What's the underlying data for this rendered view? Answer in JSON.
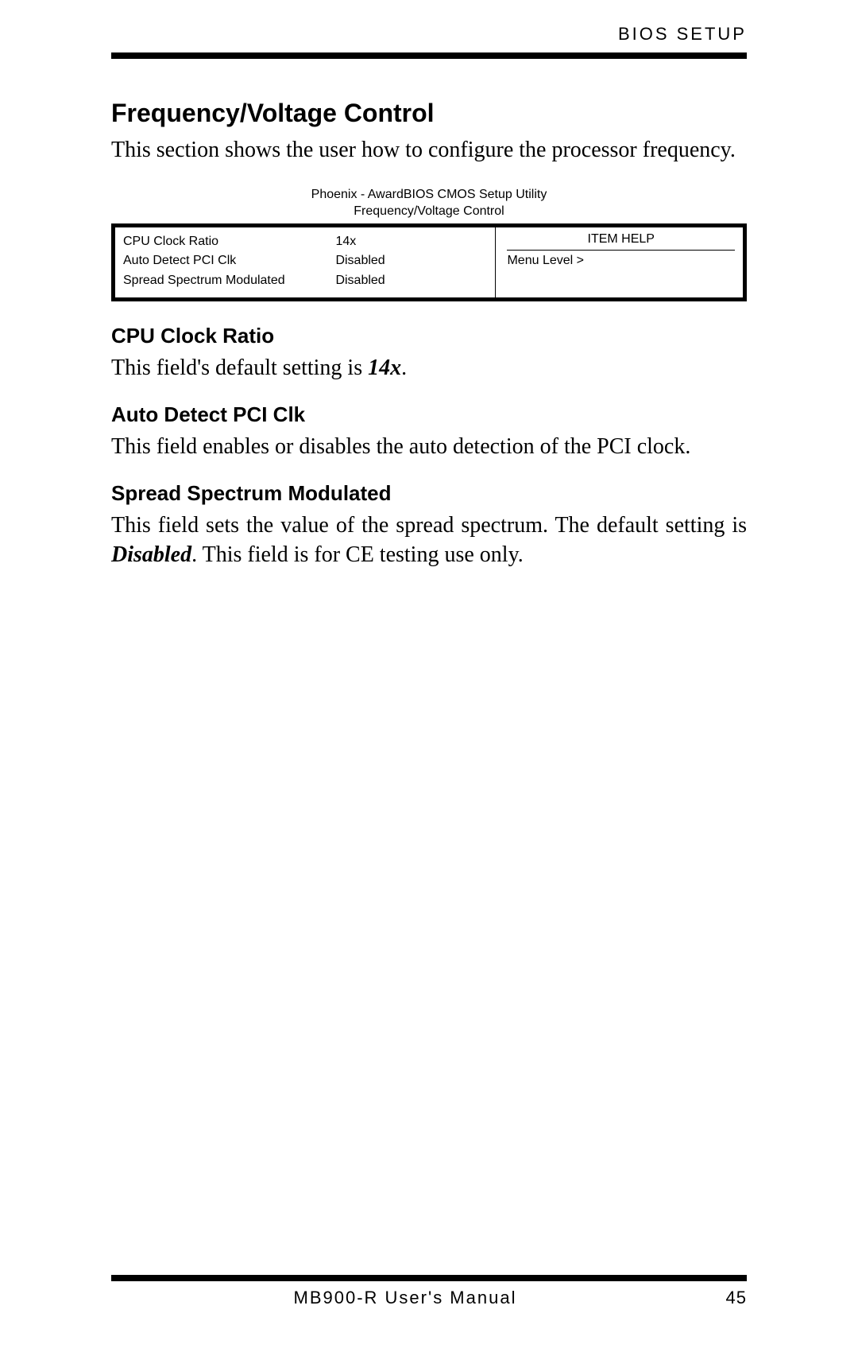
{
  "header": {
    "label": "BIOS SETUP"
  },
  "section": {
    "title": "Frequency/Voltage Control",
    "intro": "This section shows the user how to configure the processor frequency."
  },
  "bios": {
    "caption_line1": "Phoenix - AwardBIOS CMOS Setup Utility",
    "caption_line2": "Frequency/Voltage Control",
    "rows": [
      {
        "label": "CPU Clock Ratio",
        "value": "14x"
      },
      {
        "label": "Auto Detect PCI Clk",
        "value": "Disabled"
      },
      {
        "label": "Spread Spectrum Modulated",
        "value": "Disabled"
      }
    ],
    "help_header": "ITEM HELP",
    "menu_level": "Menu Level  >"
  },
  "subs": {
    "s1": {
      "heading": "CPU Clock Ratio",
      "pre": "This field's default setting is ",
      "em": "14x",
      "post": "."
    },
    "s2": {
      "heading": "Auto Detect PCI Clk",
      "text": "This field enables or disables the auto detection of the PCI clock."
    },
    "s3": {
      "heading": "Spread Spectrum Modulated",
      "pre": "This field sets the value of the spread spectrum. The default setting is ",
      "em": "Disabled",
      "post": ". This field is for CE testing use only."
    }
  },
  "footer": {
    "manual": "MB900-R User's Manual",
    "page": "45"
  },
  "colors": {
    "text": "#000000",
    "background": "#ffffff",
    "rule": "#000000"
  },
  "fonts": {
    "serif": "Times New Roman",
    "sans": "Arial"
  }
}
